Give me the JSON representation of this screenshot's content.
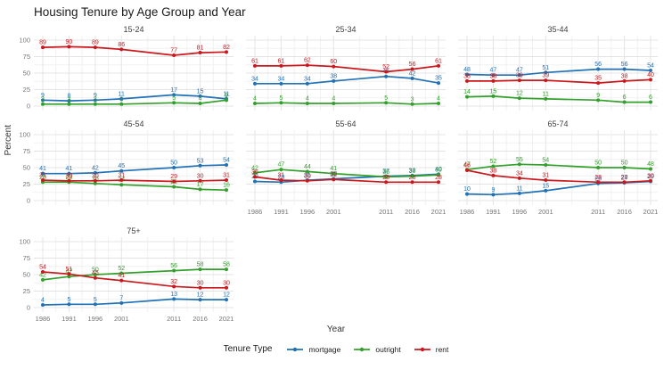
{
  "title": "Housing Tenure by Age Group and Year",
  "chart_data": {
    "type": "line",
    "title": "Housing Tenure by Age Group and Year",
    "xlabel": "Year",
    "ylabel": "Percent",
    "legend_title": "Tenure Type",
    "legend_position": "bottom",
    "grid": true,
    "x": [
      1986,
      1991,
      1996,
      2001,
      2011,
      2016,
      2021
    ],
    "x_tick_labels": [
      "1986",
      "1991",
      "1996",
      "2001",
      "2011",
      "2016",
      "2021"
    ],
    "y_ticks": [
      0,
      25,
      50,
      75,
      100
    ],
    "ylim": [
      0,
      100
    ],
    "point_labels_shown": true,
    "series_order": [
      "mortgage",
      "outright",
      "rent"
    ],
    "series_colors": {
      "mortgage": "#2171b5",
      "outright": "#33a02c",
      "rent": "#cb181d"
    },
    "facets": [
      {
        "label": "15-24",
        "row": 0,
        "col": 0,
        "show_x_ticks": false,
        "series": {
          "mortgage": [
            9,
            8,
            9,
            11,
            17,
            15,
            11
          ],
          "outright": [
            3,
            3,
            3,
            3,
            5,
            4,
            9
          ],
          "rent": [
            89,
            90,
            89,
            86,
            77,
            81,
            82
          ]
        }
      },
      {
        "label": "25-34",
        "row": 0,
        "col": 1,
        "show_x_ticks": false,
        "series": {
          "mortgage": [
            34,
            34,
            34,
            38,
            45,
            42,
            35
          ],
          "outright": [
            4,
            5,
            4,
            4,
            5,
            3,
            4
          ],
          "rent": [
            61,
            61,
            62,
            60,
            52,
            56,
            61
          ]
        }
      },
      {
        "label": "35-44",
        "row": 0,
        "col": 2,
        "show_x_ticks": false,
        "series": {
          "mortgage": [
            48,
            47,
            47,
            51,
            56,
            56,
            54
          ],
          "outright": [
            14,
            15,
            12,
            11,
            9,
            6,
            6
          ],
          "rent": [
            38,
            38,
            39,
            39,
            35,
            38,
            40
          ]
        }
      },
      {
        "label": "45-54",
        "row": 1,
        "col": 0,
        "show_x_ticks": false,
        "series": {
          "mortgage": [
            41,
            41,
            42,
            45,
            50,
            53,
            54
          ],
          "outright": [
            28,
            28,
            26,
            24,
            21,
            17,
            16
          ],
          "rent": [
            31,
            30,
            30,
            31,
            29,
            30,
            31
          ]
        }
      },
      {
        "label": "55-64",
        "row": 1,
        "col": 1,
        "show_x_ticks": true,
        "series": {
          "mortgage": [
            29,
            28,
            31,
            33,
            37,
            38,
            40
          ],
          "outright": [
            42,
            47,
            44,
            41,
            36,
            37,
            39
          ],
          "rent": [
            36,
            31,
            30,
            32,
            28,
            28,
            28
          ]
        }
      },
      {
        "label": "65-74",
        "row": 1,
        "col": 2,
        "show_x_ticks": true,
        "series": {
          "mortgage": [
            10,
            9,
            11,
            15,
            26,
            27,
            29
          ],
          "outright": [
            47,
            52,
            55,
            54,
            50,
            50,
            48
          ],
          "rent": [
            46,
            38,
            34,
            31,
            28,
            28,
            30
          ]
        }
      },
      {
        "label": "75+",
        "row": 2,
        "col": 0,
        "show_x_ticks": true,
        "series": {
          "mortgage": [
            4,
            5,
            5,
            7,
            13,
            12,
            12
          ],
          "outright": [
            42,
            47,
            50,
            52,
            56,
            58,
            58
          ],
          "rent": [
            54,
            51,
            45,
            41,
            32,
            30,
            30
          ]
        }
      }
    ],
    "style": {
      "grid_major_color": "#e4e4e4",
      "grid_minor_color": "#f1f1f1",
      "tick_text_color": "#757575"
    }
  }
}
